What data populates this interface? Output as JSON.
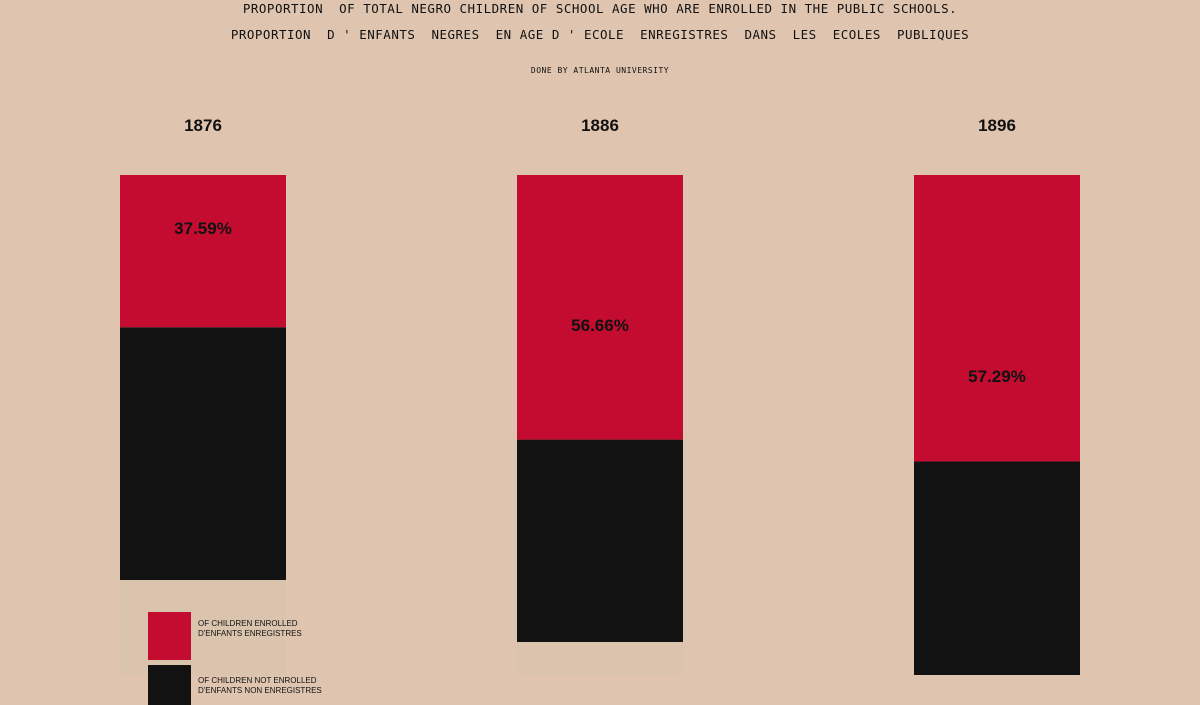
{
  "title_en": "PROPORTION  OF TOTAL NEGRO CHILDREN OF SCHOOL AGE WHO ARE ENROLLED IN THE PUBLIC SCHOOLS.",
  "title_fr": "PROPORTION  D ' ENFANTS  NEGRES  EN AGE D ' ECOLE  ENREGISTRES  DANS  LES  ECOLES  PUBLIQUES",
  "credit": "DONE BY ATLANTA UNIVERSITY",
  "colors": {
    "background": "#dfc5b0",
    "enrolled": "#c40c31",
    "not_enrolled": "#121212",
    "bar_base": "#dbc4ae"
  },
  "legend": {
    "enrolled": {
      "line1": "OF CHILDREN ENROLLED",
      "line2": "D'ENFANTS ENREGISTRES"
    },
    "not_enrolled": {
      "line1": "OF CHILDREN NOT ENROLLED",
      "line2": "D'ENFANTS NON ENREGISTRES"
    }
  },
  "chart_data": {
    "type": "bar",
    "stacked": true,
    "categories": [
      "1876",
      "1886",
      "1896"
    ],
    "series": [
      {
        "name": "OF CHILDREN ENROLLED / D'ENFANTS ENREGISTRES",
        "values": [
          37.59,
          56.66,
          57.29
        ]
      },
      {
        "name": "OF CHILDREN NOT ENROLLED / D'ENFANTS NON ENREGISTRES",
        "values": [
          62.41,
          43.34,
          42.71
        ]
      }
    ],
    "data_labels": [
      "37.59%",
      "56.66%",
      "57.29%"
    ],
    "title": "PROPORTION  OF TOTAL NEGRO CHILDREN OF SCHOOL AGE WHO ARE ENROLLED IN THE PUBLIC SCHOOLS.",
    "ylim": [
      0,
      100
    ],
    "grid": false,
    "legend_position": "bottom-left"
  }
}
